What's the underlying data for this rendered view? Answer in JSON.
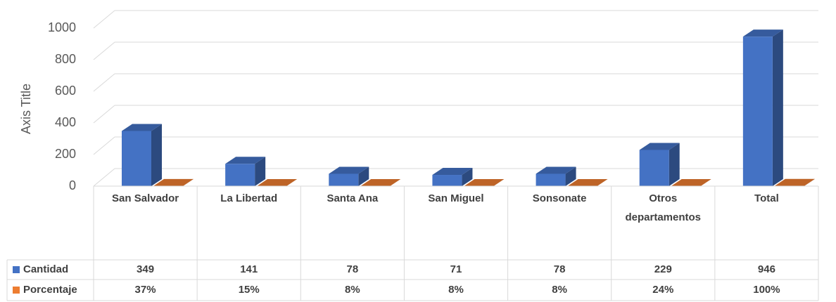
{
  "chart_data": {
    "type": "bar3d",
    "y_label": "Axis Title",
    "categories": [
      "San Salvador",
      "La Libertad",
      "Santa Ana",
      "San Miguel",
      "Sonsonate",
      "Otros departamentos",
      "Total"
    ],
    "series": [
      {
        "name": "Cantidad",
        "color": "#4472c4",
        "values": [
          349,
          141,
          78,
          71,
          78,
          229,
          946
        ]
      },
      {
        "name": "Porcentaje",
        "color": "#ed7d31",
        "values": [
          0.37,
          0.15,
          0.08,
          0.08,
          0.08,
          0.24,
          1
        ],
        "value_labels": [
          "37%",
          "15%",
          "8%",
          "8%",
          "8%",
          "24%",
          "100%"
        ]
      }
    ],
    "ylim": [
      0,
      1000
    ],
    "yticks": [
      0,
      200,
      400,
      600,
      800,
      1000
    ],
    "grid": true
  }
}
